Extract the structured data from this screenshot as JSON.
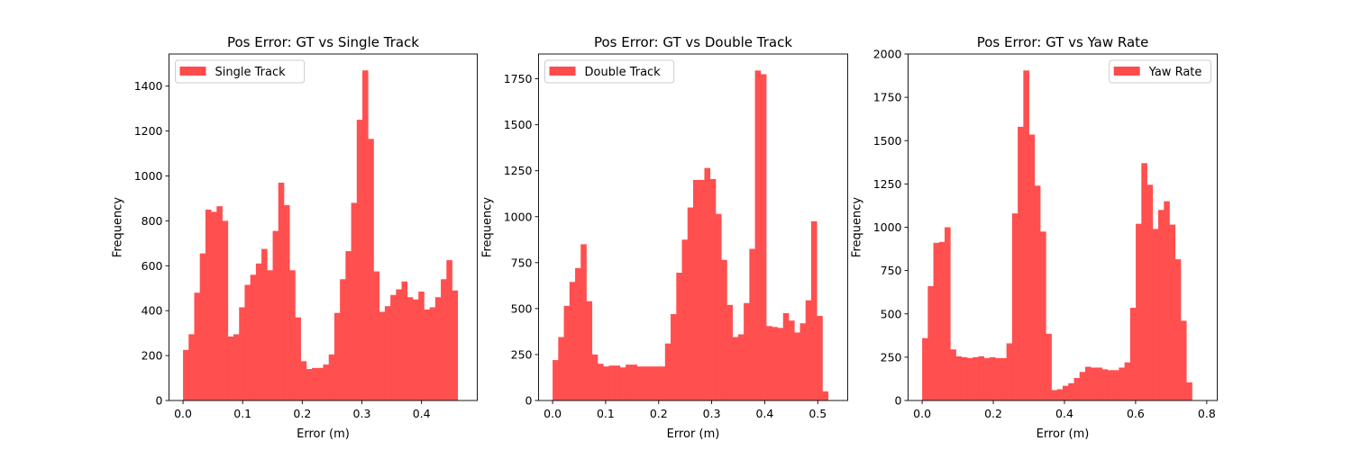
{
  "chart_data": [
    {
      "type": "bar",
      "title": "Pos Error: GT vs Single Track",
      "xlabel": "Error (m)",
      "ylabel": "Frequency",
      "xlim": [
        -0.0235,
        0.4935
      ],
      "ylim": [
        0,
        1543
      ],
      "xticks": [
        0.0,
        0.1,
        0.2,
        0.3,
        0.4
      ],
      "xtick_labels": [
        "0.0",
        "0.1",
        "0.2",
        "0.3",
        "0.4"
      ],
      "yticks": [
        0,
        200,
        400,
        600,
        800,
        1000,
        1200,
        1400
      ],
      "ytick_labels": [
        "0",
        "200",
        "400",
        "600",
        "800",
        "1000",
        "1200",
        "1400"
      ],
      "bin_start": 0.0,
      "bin_width": 0.0094,
      "color": "#ff4b4b",
      "legend": {
        "label": "Single Track",
        "loc": "upper left"
      },
      "values": [
        225,
        295,
        480,
        655,
        850,
        840,
        865,
        800,
        285,
        295,
        415,
        515,
        560,
        610,
        675,
        580,
        755,
        970,
        870,
        580,
        370,
        175,
        140,
        145,
        145,
        160,
        205,
        390,
        540,
        665,
        880,
        1250,
        1470,
        1165,
        575,
        395,
        420,
        470,
        495,
        530,
        460,
        450,
        485,
        405,
        415,
        460,
        540,
        625,
        490
      ]
    },
    {
      "type": "bar",
      "title": "Pos Error: GT vs Double Track",
      "xlabel": "Error (m)",
      "ylabel": "Frequency",
      "xlim": [
        -0.0265,
        0.5565
      ],
      "ylim": [
        0,
        1885
      ],
      "xticks": [
        0.0,
        0.1,
        0.2,
        0.3,
        0.4,
        0.5
      ],
      "xtick_labels": [
        "0.0",
        "0.1",
        "0.2",
        "0.3",
        "0.4",
        "0.5"
      ],
      "yticks": [
        0,
        250,
        500,
        750,
        1000,
        1250,
        1500,
        1750
      ],
      "ytick_labels": [
        "0",
        "250",
        "500",
        "750",
        "1000",
        "1250",
        "1500",
        "1750"
      ],
      "bin_start": 0.0,
      "bin_width": 0.0106,
      "color": "#ff4b4b",
      "legend": {
        "label": "Double Track",
        "loc": "upper left"
      },
      "values": [
        220,
        345,
        515,
        645,
        720,
        850,
        540,
        250,
        200,
        185,
        190,
        190,
        180,
        195,
        195,
        185,
        185,
        185,
        185,
        185,
        310,
        470,
        695,
        875,
        1050,
        1200,
        1200,
        1265,
        1205,
        1015,
        765,
        520,
        345,
        360,
        530,
        825,
        1795,
        1775,
        405,
        400,
        395,
        475,
        435,
        370,
        420,
        545,
        975,
        460,
        50
      ]
    },
    {
      "type": "bar",
      "title": "Pos Error: GT vs Yaw Rate",
      "xlabel": "Error (m)",
      "ylabel": "Frequency",
      "xlim": [
        -0.0395,
        0.8295
      ],
      "ylim": [
        0,
        2000
      ],
      "xticks": [
        0.0,
        0.2,
        0.4,
        0.6,
        0.8
      ],
      "xtick_labels": [
        "0.0",
        "0.2",
        "0.4",
        "0.6",
        "0.8"
      ],
      "yticks": [
        0,
        250,
        500,
        750,
        1000,
        1250,
        1500,
        1750,
        2000
      ],
      "ytick_labels": [
        "0",
        "250",
        "500",
        "750",
        "1000",
        "1250",
        "1500",
        "1750",
        "2000"
      ],
      "bin_start": 0.0,
      "bin_width": 0.0158,
      "color": "#ff4b4b",
      "legend": {
        "label": "Yaw Rate",
        "loc": "upper right"
      },
      "values": [
        360,
        660,
        910,
        915,
        1000,
        295,
        255,
        250,
        245,
        250,
        255,
        245,
        250,
        245,
        245,
        330,
        1080,
        1580,
        1905,
        1535,
        1240,
        975,
        385,
        60,
        65,
        85,
        100,
        130,
        165,
        195,
        190,
        190,
        180,
        175,
        175,
        190,
        220,
        535,
        1020,
        1370,
        1245,
        990,
        1100,
        1150,
        1015,
        815,
        460,
        105
      ]
    }
  ]
}
